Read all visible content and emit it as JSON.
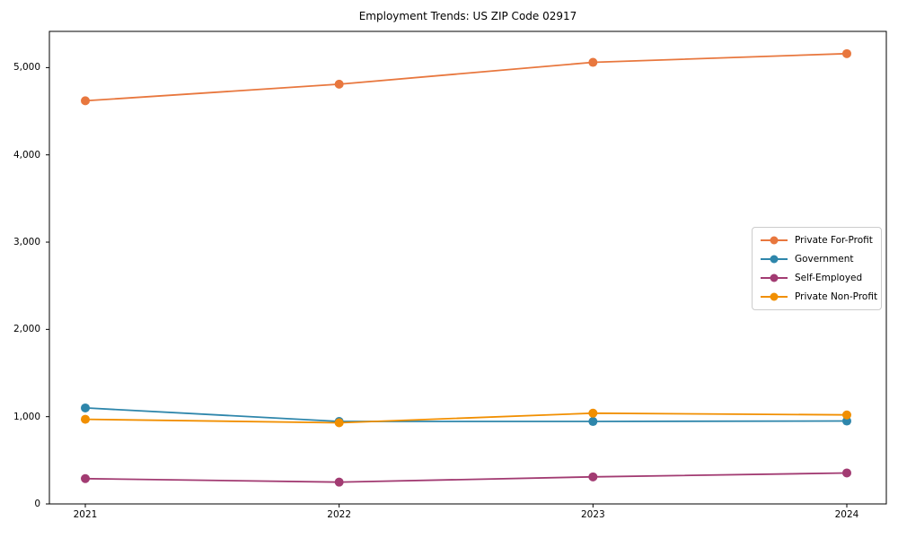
{
  "chart_data": {
    "type": "line",
    "title": "Employment Trends: US ZIP Code 02917",
    "x": [
      2021,
      2022,
      2023,
      2024
    ],
    "x_tick_labels": [
      "2021",
      "2022",
      "2023",
      "2024"
    ],
    "y_ticks": [
      0,
      1000,
      2000,
      3000,
      4000,
      5000
    ],
    "y_tick_labels": [
      "0",
      "1,000",
      "2,000",
      "3,000",
      "4,000",
      "5,000"
    ],
    "ylim": [
      0,
      5415
    ],
    "grid": false,
    "legend_position": "center right",
    "marker": "circle",
    "series": [
      {
        "name": "Private For-Profit",
        "color": "#e8773e",
        "values": [
          4620,
          4810,
          5060,
          5160
        ]
      },
      {
        "name": "Government",
        "color": "#2e86ab",
        "values": [
          1100,
          945,
          945,
          950
        ]
      },
      {
        "name": "Self-Employed",
        "color": "#a23b72",
        "values": [
          290,
          250,
          310,
          355
        ]
      },
      {
        "name": "Private Non-Profit",
        "color": "#f18f01",
        "values": [
          970,
          930,
          1040,
          1020
        ]
      }
    ]
  }
}
